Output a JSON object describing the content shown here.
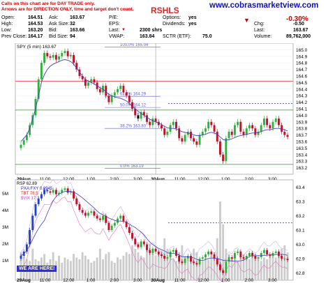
{
  "header": {
    "notice_line1": "Calls on this chart are for DAY TRADE only.",
    "notice_line2": "Arrows are for DIRECTION ONLY, time and target don't count.",
    "symbol": "RSHLS",
    "site": "www.cobrasmarketview.com",
    "change_pct": "-0.30%",
    "stats": [
      {
        "label": "Open:",
        "value": "164.51"
      },
      {
        "label": "High:",
        "value": "164.53"
      },
      {
        "label": "Low:",
        "value": "163.20"
      },
      {
        "label": "Prev Close:",
        "value": "164.17"
      },
      {
        "label": "Ask:",
        "value": "163.67"
      },
      {
        "label": "Ask Size:",
        "value": "32"
      },
      {
        "label": "Bid:",
        "value": "163.66"
      },
      {
        "label": "Bid Size:",
        "value": "94"
      },
      {
        "label": "P/E:",
        "value": ""
      },
      {
        "label": "EPS:",
        "value": ""
      },
      {
        "label": "Last:",
        "value": "2300 shrs"
      },
      {
        "label": "VWAP:",
        "value": "163.84"
      },
      {
        "label": "Options:",
        "value": "yes"
      },
      {
        "label": "Dividends:",
        "value": "yes"
      },
      {
        "label": "SCTR (ETF):",
        "value": "75.0"
      },
      {
        "label": "Chg:",
        "value": "-0.50"
      },
      {
        "label": "Last:",
        "value": "163.67"
      },
      {
        "label": "Volume:",
        "value": "89,762,000"
      }
    ]
  },
  "we_are_here": "WE ARE HERE!",
  "colors": {
    "up": "#2fb03a",
    "down": "#c0102a",
    "ma": "#4040c0",
    "fib": "#6060c0",
    "red_line": "#e03030",
    "green_line": "#20a020",
    "blue_dash": "#2020c0"
  },
  "chart_data": [
    {
      "type": "line",
      "legend": "SPY (5 min) 163.67",
      "ylim": [
        163.1,
        165.1
      ],
      "y_ticks": [
        "165.0",
        "164.9",
        "164.8",
        "164.7",
        "164.6",
        "164.5",
        "164.4",
        "164.3",
        "164.2",
        "164.1",
        "164.0",
        "163.9",
        "163.8",
        "163.7",
        "163.6",
        "163.5",
        "163.4",
        "163.3",
        "163.2"
      ],
      "x_ticks": [
        "29Aug",
        "11:00",
        "12:00",
        "1:00",
        "2:00",
        "3:00",
        "30Aug",
        "11:00",
        "12:00",
        "1:00",
        "2:00",
        "3:00"
      ],
      "fib_levels": [
        {
          "label": "100.0% 165.04",
          "value": 165.04
        },
        {
          "label": "61.8% 164.29",
          "value": 164.29
        },
        {
          "label": "50.0% 164.12",
          "value": 164.12
        },
        {
          "label": "38.2% 163.80",
          "value": 163.8
        },
        {
          "label": "0.0% 163.19",
          "value": 163.19
        }
      ],
      "hlines": [
        {
          "value": 164.52,
          "color": "red"
        },
        {
          "value": 164.08,
          "color": "green"
        },
        {
          "value": 163.25,
          "color": "green"
        }
      ],
      "dashed_line": {
        "value": 164.18,
        "from_x": 0.55
      },
      "close": [
        163.55,
        163.62,
        163.7,
        163.85,
        164.0,
        164.25,
        164.55,
        164.8,
        164.95,
        164.9,
        164.88,
        164.92,
        164.85,
        164.9,
        164.95,
        164.98,
        164.9,
        164.92,
        164.8,
        164.7,
        164.6,
        164.55,
        164.45,
        164.5,
        164.55,
        164.5,
        164.4,
        164.35,
        164.45,
        164.3,
        164.2,
        164.3,
        164.35,
        164.4,
        164.45,
        164.35,
        164.3,
        164.2,
        164.1,
        164.0,
        163.95,
        164.05,
        164.0,
        163.9,
        163.85,
        163.95,
        163.9,
        163.85,
        163.8,
        163.7,
        163.75,
        163.85,
        163.9,
        163.8,
        163.65,
        163.6,
        163.7,
        163.75,
        163.65,
        163.6,
        163.55,
        163.7,
        163.75,
        163.8,
        163.9,
        163.85,
        163.75,
        163.6,
        163.4,
        163.3,
        163.65,
        163.75,
        163.7,
        163.85,
        163.9,
        163.75,
        163.7,
        163.8,
        163.85,
        163.8,
        163.7,
        163.75,
        163.85,
        163.95,
        163.85,
        163.8,
        163.9,
        163.95,
        163.85,
        163.75,
        163.7,
        163.67
      ],
      "ma": [
        163.6,
        163.65,
        163.7,
        163.8,
        163.95,
        164.1,
        164.3,
        164.5,
        164.62,
        164.7,
        164.75,
        164.78,
        164.8,
        164.82,
        164.84,
        164.85,
        164.84,
        164.82,
        164.78,
        164.72,
        164.66,
        164.6,
        164.55,
        164.52,
        164.5,
        164.48,
        164.45,
        164.42,
        164.4,
        164.36,
        164.32,
        164.3,
        164.28,
        164.27,
        164.26,
        164.24,
        164.22,
        164.18,
        164.14,
        164.1,
        164.06,
        164.03,
        164.0,
        163.97,
        163.94,
        163.92,
        163.9,
        163.88,
        163.86,
        163.83,
        163.81,
        163.8,
        163.8,
        163.79,
        163.77,
        163.75,
        163.74,
        163.73,
        163.72,
        163.7,
        163.69,
        163.69,
        163.7,
        163.71,
        163.73,
        163.74,
        163.73,
        163.71,
        163.67,
        163.63,
        163.62,
        163.63,
        163.64,
        163.66,
        163.68,
        163.69,
        163.7,
        163.71,
        163.72,
        163.73,
        163.73,
        163.74,
        163.75,
        163.77,
        163.78,
        163.78,
        163.79,
        163.8,
        163.8,
        163.79,
        163.78,
        163.76
      ]
    },
    {
      "type": "bar",
      "legends": [
        "RSP 62.89",
        "PXA:FXY 0.8945",
        "TBT 76.5",
        "$VIX 17.2"
      ],
      "volume_ticks": [
        "5M",
        "4M",
        "3M",
        "2M",
        "1M"
      ],
      "y_ticks": [
        "63.4",
        "63.3",
        "63.2",
        "63.1",
        "63.0",
        "62.9",
        "62.8"
      ],
      "ylim": [
        62.75,
        63.45
      ],
      "dashed_line": {
        "value": 63.15,
        "from_x": 0.55
      },
      "close": [
        62.92,
        62.95,
        63.0,
        63.1,
        63.2,
        63.28,
        63.32,
        63.35,
        63.38,
        63.37,
        63.36,
        63.38,
        63.35,
        63.36,
        63.38,
        63.39,
        63.36,
        63.37,
        63.32,
        63.28,
        63.24,
        63.22,
        63.2,
        63.22,
        63.23,
        63.2,
        63.18,
        63.17,
        63.2,
        63.15,
        63.1,
        63.13,
        63.15,
        63.18,
        63.2,
        63.16,
        63.12,
        63.08,
        63.04,
        63.0,
        62.98,
        63.02,
        63.0,
        62.96,
        62.94,
        62.97,
        62.95,
        62.93,
        62.92,
        62.9,
        62.91,
        62.95,
        62.96,
        62.92,
        62.88,
        62.87,
        62.9,
        62.92,
        62.88,
        62.87,
        62.86,
        62.9,
        62.91,
        62.93,
        62.95,
        62.93,
        62.9,
        62.86,
        62.82,
        62.8,
        62.88,
        62.91,
        62.9,
        62.94,
        62.95,
        62.91,
        62.9,
        62.92,
        62.94,
        62.92,
        62.9,
        62.91,
        62.94,
        62.96,
        62.93,
        62.92,
        62.94,
        62.95,
        62.92,
        62.9,
        62.9,
        62.89
      ],
      "volume_millions": [
        1.6,
        1.3,
        1.2,
        1.1,
        1.8,
        1.2,
        1.1,
        1.3,
        1.5,
        1.0,
        1.2,
        1.6,
        1.1,
        1.4,
        1.0,
        1.3,
        1.2,
        1.1,
        1.5,
        1.3,
        1.2,
        1.6,
        1.4,
        1.2,
        1.0,
        1.1,
        1.3,
        1.8,
        1.2,
        1.5,
        1.6,
        1.1,
        1.0,
        1.3,
        1.2,
        1.4,
        1.6,
        1.5,
        2.0,
        1.8,
        1.6,
        1.4,
        1.3,
        1.8,
        2.1,
        1.6,
        1.4,
        1.5,
        1.7,
        2.4,
        1.8,
        1.3,
        1.2,
        1.1,
        1.6,
        2.0,
        1.4,
        1.2,
        1.3,
        1.8,
        1.6,
        1.2,
        1.1,
        1.3,
        1.2,
        1.4,
        1.6,
        2.4,
        4.5,
        3.2,
        1.8,
        1.5,
        1.3,
        1.2,
        1.1,
        1.4,
        1.5,
        1.3,
        1.2,
        1.6,
        1.5,
        1.2,
        1.1,
        1.3,
        1.2,
        1.4,
        1.5,
        1.3,
        1.6,
        1.8,
        2.0,
        1.6
      ]
    }
  ]
}
